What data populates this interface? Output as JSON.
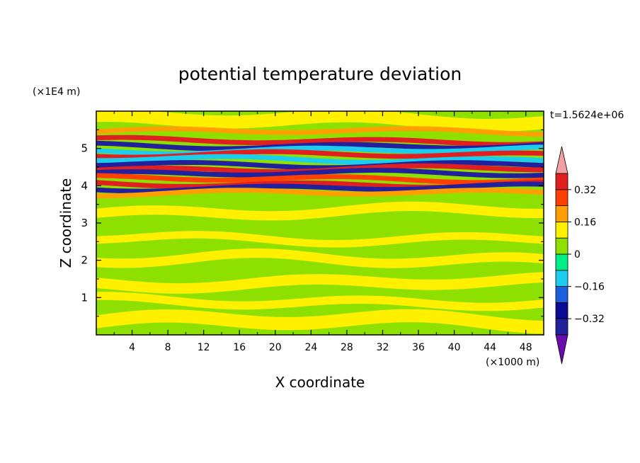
{
  "chart_data": {
    "type": "heatmap",
    "title": "potential temperature deviation",
    "xlabel": "X coordinate",
    "ylabel": "Z coordinate",
    "x_unit": "(×1000 m)",
    "y_unit": "(×1E4 m)",
    "time_label": "t=1.5624e+06",
    "xlim": [
      0,
      50
    ],
    "ylim": [
      0,
      6
    ],
    "x_ticks": [
      4,
      8,
      12,
      16,
      20,
      24,
      28,
      32,
      36,
      40,
      44,
      48
    ],
    "y_ticks": [
      1,
      2,
      3,
      4,
      5
    ],
    "colorbar": {
      "levels": [
        -0.4,
        -0.32,
        -0.24,
        -0.16,
        -0.08,
        0,
        0.08,
        0.16,
        0.24,
        0.32,
        0.4
      ],
      "tick_labels": [
        "0.32",
        "0.16",
        "0",
        "−0.16",
        "−0.32"
      ],
      "tick_values": [
        0.32,
        0.16,
        0,
        -0.16,
        -0.32
      ],
      "colors_low_to_high": [
        "#6a0dad",
        "#23209e",
        "#0b0b96",
        "#1e5fe0",
        "#1ccdee",
        "#00ee88",
        "#8ee000",
        "#fff000",
        "#ffa000",
        "#ff4000",
        "#e02020",
        "#f0a0a0"
      ]
    },
    "bands": [
      {
        "z": 5.45,
        "value": 0.2
      },
      {
        "z": 5.2,
        "value": 0.34
      },
      {
        "z": 5.08,
        "value": -0.34
      },
      {
        "z": 4.95,
        "value": -0.12
      },
      {
        "z": 4.82,
        "value": 0.38
      },
      {
        "z": 4.7,
        "value": -0.15
      },
      {
        "z": 4.58,
        "value": -0.36
      },
      {
        "z": 4.45,
        "value": 0.38
      },
      {
        "z": 4.32,
        "value": -0.36
      },
      {
        "z": 4.18,
        "value": 0.3
      },
      {
        "z": 4.05,
        "value": 0.38
      },
      {
        "z": 3.95,
        "value": -0.36
      },
      {
        "z": 3.8,
        "value": 0.2
      }
    ]
  }
}
